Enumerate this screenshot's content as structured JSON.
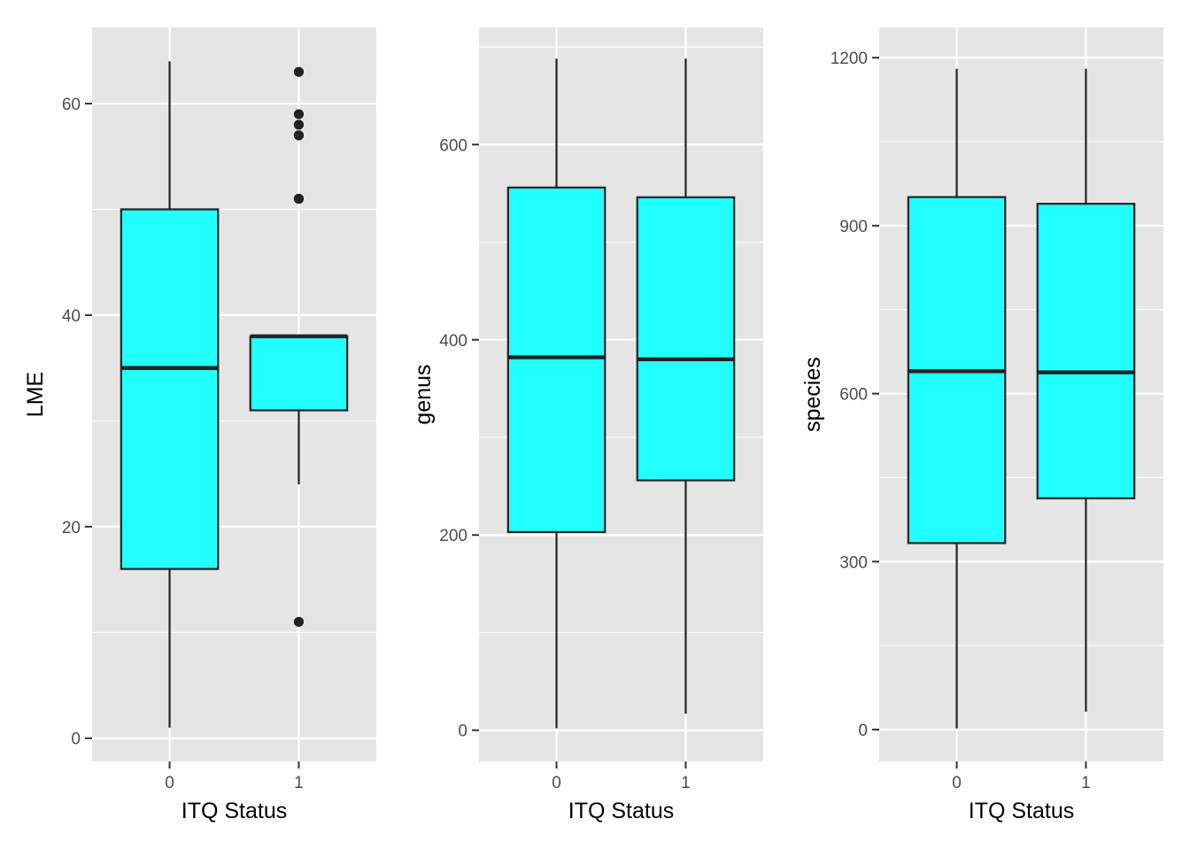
{
  "colors": {
    "panel_background": "#e5e5e5",
    "grid_line": "#ffffff",
    "box_fill": "#22ffff",
    "box_stroke": "#222222",
    "tick_text": "#4d4d4d"
  },
  "chart_data": [
    {
      "type": "boxplot",
      "xlabel": "ITQ Status",
      "ylabel": "LME",
      "categories": [
        "0",
        "1"
      ],
      "yticks": [
        0,
        20,
        40,
        60
      ],
      "ylim": [
        -2.2,
        67.2
      ],
      "grid": true,
      "boxes": [
        {
          "category": "0",
          "whisker_low": 1,
          "q1": 16,
          "median": 35,
          "q3": 50,
          "whisker_high": 64,
          "outliers": []
        },
        {
          "category": "1",
          "whisker_low": 24,
          "q1": 31,
          "median": 38,
          "q3": 38,
          "whisker_high": 38,
          "outliers": [
            11,
            51,
            51,
            57,
            57,
            58,
            59,
            63
          ]
        }
      ]
    },
    {
      "type": "boxplot",
      "xlabel": "ITQ Status",
      "ylabel": "genus",
      "categories": [
        "0",
        "1"
      ],
      "yticks": [
        0,
        200,
        400,
        600
      ],
      "ylim": [
        -32,
        720
      ],
      "grid": true,
      "boxes": [
        {
          "category": "0",
          "whisker_low": 2,
          "q1": 203,
          "median": 382,
          "q3": 556,
          "whisker_high": 688,
          "outliers": []
        },
        {
          "category": "1",
          "whisker_low": 17,
          "q1": 256,
          "median": 380,
          "q3": 546,
          "whisker_high": 688,
          "outliers": []
        }
      ]
    },
    {
      "type": "boxplot",
      "xlabel": "ITQ Status",
      "ylabel": "species",
      "categories": [
        "0",
        "1"
      ],
      "yticks": [
        0,
        300,
        600,
        900,
        1200
      ],
      "ylim": [
        -57,
        1254
      ],
      "grid": true,
      "boxes": [
        {
          "category": "0",
          "whisker_low": 2,
          "q1": 333,
          "median": 640,
          "q3": 951,
          "whisker_high": 1180,
          "outliers": []
        },
        {
          "category": "1",
          "whisker_low": 32,
          "q1": 413,
          "median": 638,
          "q3": 939,
          "whisker_high": 1180,
          "outliers": []
        }
      ]
    }
  ]
}
